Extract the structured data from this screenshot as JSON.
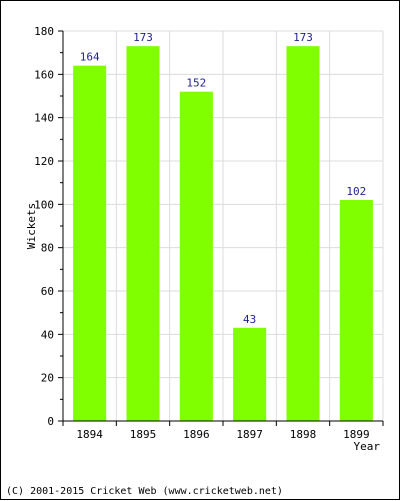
{
  "chart_data": {
    "type": "bar",
    "categories": [
      "1894",
      "1895",
      "1896",
      "1897",
      "1898",
      "1899"
    ],
    "values": [
      164,
      173,
      152,
      43,
      173,
      102
    ],
    "title": "",
    "xlabel": "Year",
    "ylabel": "Wickets",
    "ylim": [
      0,
      180
    ],
    "yticks": [
      0,
      20,
      40,
      60,
      80,
      100,
      120,
      140,
      160,
      180
    ],
    "grid": true,
    "bar_color": "#80ff00",
    "label_color": "#1f1f9a",
    "grid_color": "#dcdcdc"
  },
  "footer": {
    "copyright": "(C) 2001-2015 Cricket Web (www.cricketweb.net)"
  }
}
